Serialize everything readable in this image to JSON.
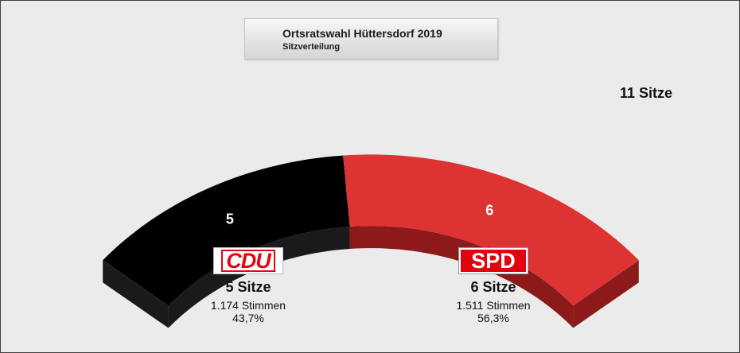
{
  "title": "Ortsratswahl Hüttersdorf 2019",
  "subtitle": "Sitzverteilung",
  "total_label": "11 Sitze",
  "parties": [
    {
      "name": "CDU",
      "logo_text": "CDU",
      "seats": 5,
      "seats_label": "5 Sitze",
      "votes_label": "1.174 Stimmen",
      "percent_label": "43,7%",
      "color": "#000000",
      "side_color": "#1a1a1a"
    },
    {
      "name": "SPD",
      "logo_text": "SPD",
      "seats": 6,
      "seats_label": "6 Sitze",
      "votes_label": "1.511 Stimmen",
      "percent_label": "56,3%",
      "color": "#dd3333",
      "side_color": "#8c1a1a"
    }
  ],
  "chart_data": {
    "type": "pie",
    "title": "Ortsratswahl Hüttersdorf 2019",
    "subtitle": "Sitzverteilung",
    "total_seats": 11,
    "categories": [
      "CDU",
      "SPD"
    ],
    "values": [
      5,
      6
    ],
    "votes": [
      1174,
      1511
    ],
    "percent": [
      43.7,
      56.3
    ],
    "style": "3d-semicircle-arc",
    "colors": [
      "#000000",
      "#dd3333"
    ]
  }
}
